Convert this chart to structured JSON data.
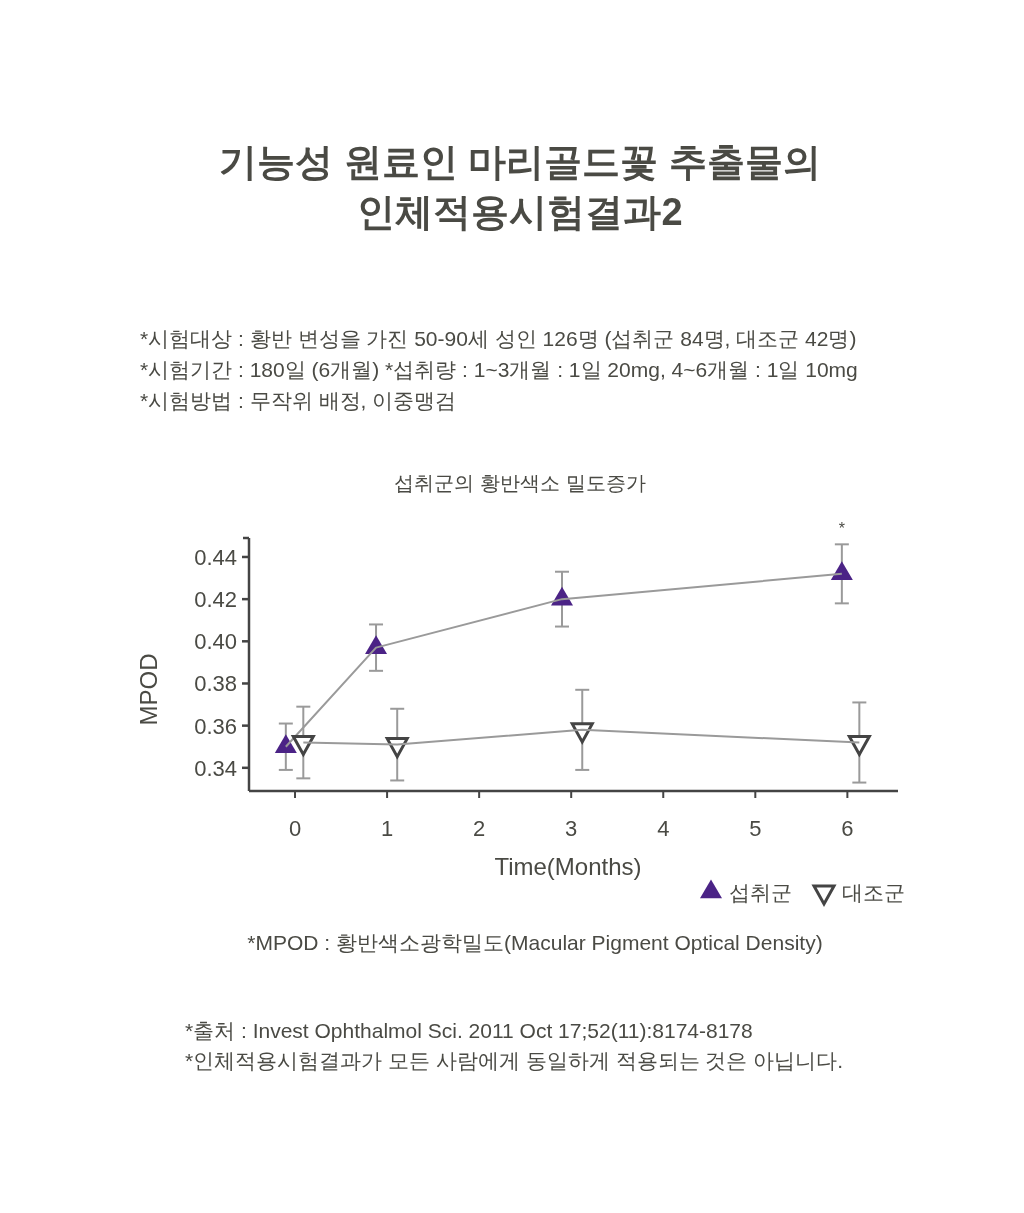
{
  "chart_data": {
    "type": "line",
    "title": "기능성 원료인 마리골드꽃 추출물의\n인체적용시험결과2",
    "subtitle": "섭취군의 황반색소 밀도증가",
    "xlabel": "Time(Months)",
    "ylabel": "MPOD",
    "annotations": [
      "*시험대상 : 황반 변성을 가진 50-90세 성인 126명 (섭취군 84명, 대조군 42명)",
      "*시험기간 : 180일 (6개월)  *섭취량 : 1~3개월 : 1일 20mg, 4~6개월 : 1일 10mg",
      "*시험방법 : 무작위 배정, 이중맹검",
      {
        "text": "*",
        "x": 5.94,
        "y": 0.446
      },
      "*MPOD : 황반색소광학밀도(Macular Pigment Optical Density)",
      "*출처 : Invest Ophthalmol Sci. 2011 Oct 17;52(11):8174-8178",
      "*인체적용시험결과가 모든 사람에게 동일하게 적용되는 것은 아닙니다."
    ],
    "series": [
      {
        "name": "섭취군",
        "color": "#4b2386",
        "marker": "triangle",
        "x": [
          -0.1,
          0.88,
          2.9,
          5.94
        ],
        "values": [
          0.35,
          0.397,
          0.42,
          0.432
        ],
        "errors": [
          0.011,
          0.011,
          0.013,
          0.014
        ]
      },
      {
        "name": "대조군",
        "color": "#444444",
        "marker": "triangle_down",
        "x": [
          0.09,
          1.11,
          3.12,
          6.13
        ],
        "values": [
          0.352,
          0.351,
          0.358,
          0.352
        ],
        "errors": [
          0.017,
          0.017,
          0.019,
          0.019
        ]
      }
    ],
    "xlim": [
      -0.5,
      6.55
    ],
    "xticks": [
      0,
      1,
      2,
      3,
      4,
      5,
      6
    ],
    "ylim": [
      0.329,
      0.449
    ],
    "yticks": [
      0.34,
      0.36,
      0.38,
      {
        "value": 0.4,
        "label": "0.40"
      },
      0.42,
      0.44
    ],
    "grid": false,
    "legend": "bottom right"
  }
}
